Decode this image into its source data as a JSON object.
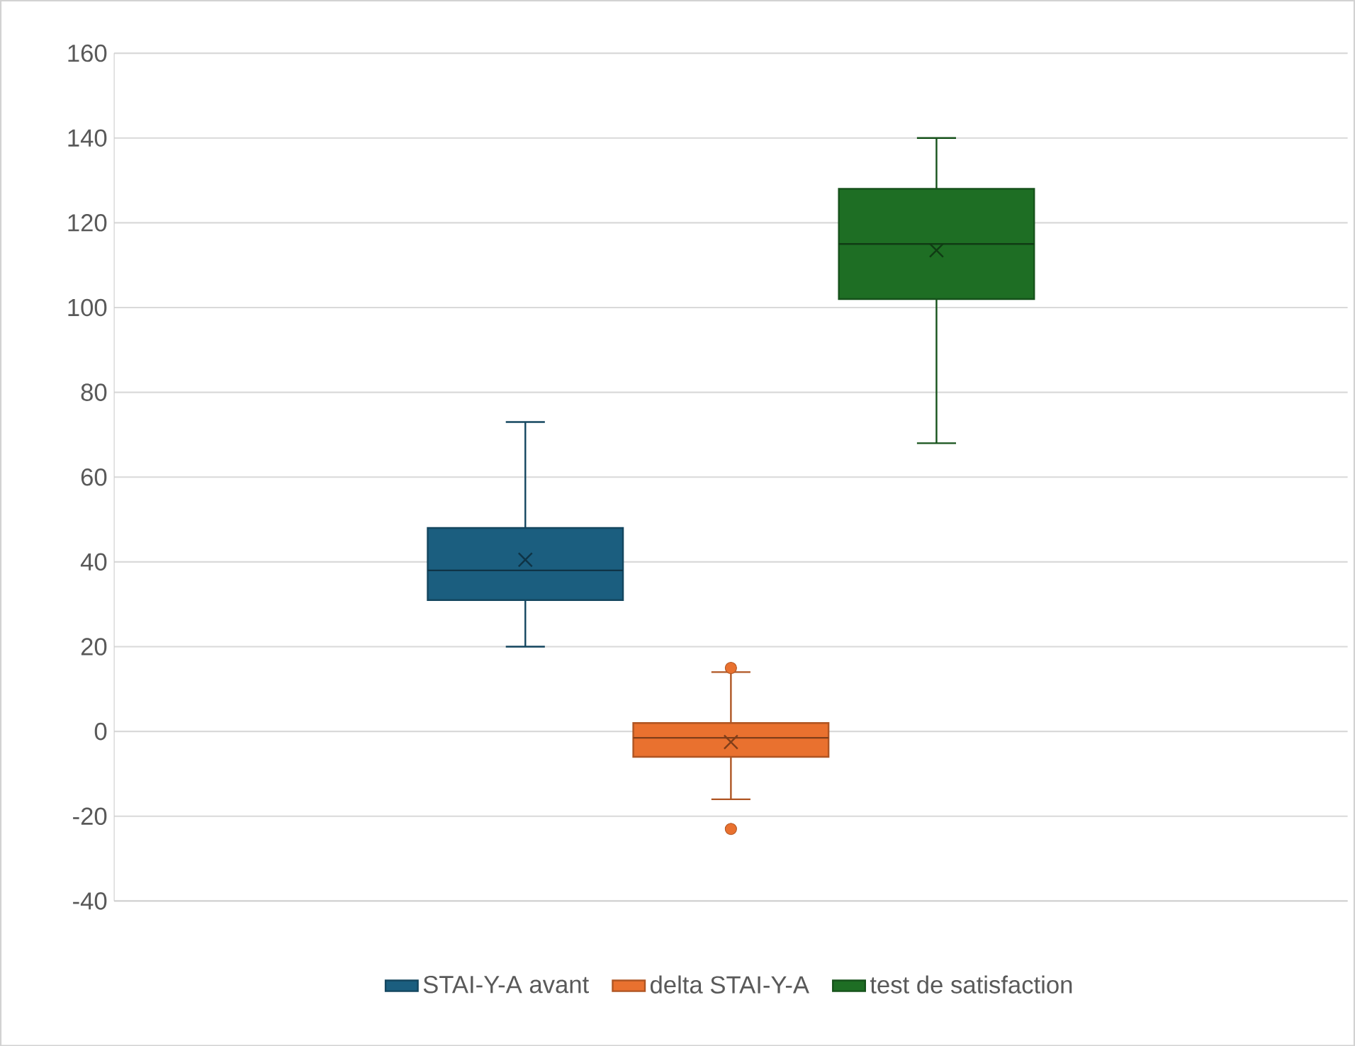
{
  "chart_data": {
    "type": "box",
    "categories": [
      null
    ],
    "ylim": [
      -40,
      160
    ],
    "yticks": [
      -40,
      -20,
      0,
      20,
      40,
      60,
      80,
      100,
      120,
      140,
      160
    ],
    "grid": "y",
    "legend": "bottom",
    "tick_labels": "y",
    "series": [
      {
        "name": "STAI-Y-A avant",
        "color": "#1b5e7f",
        "boxes": [
          {
            "low": 20,
            "q1": 31,
            "median": 38,
            "q3": 48,
            "high": 73,
            "mean": 40.5
          }
        ]
      },
      {
        "name": "delta STAI-Y-A",
        "color": "#e9712f",
        "boxes": [
          {
            "low": -16,
            "q1": -6,
            "median": -1.5,
            "q3": 2,
            "high": 14,
            "mean": -2.5,
            "outliers": [
              15,
              -23
            ]
          }
        ]
      },
      {
        "name": "test de satisfaction",
        "color": "#1e6e24",
        "boxes": [
          {
            "low": 68,
            "q1": 102,
            "median": 115,
            "q3": 128,
            "high": 140,
            "mean": 113.5
          }
        ]
      }
    ]
  }
}
